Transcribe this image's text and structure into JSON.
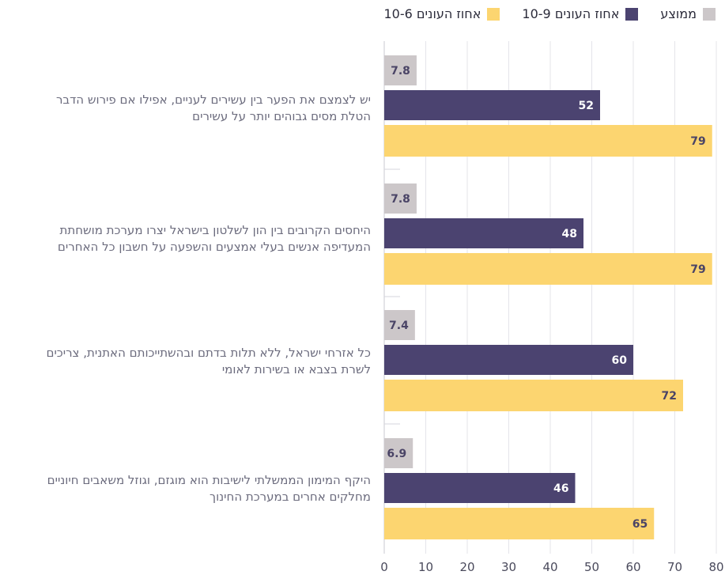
{
  "chart_data": {
    "type": "bar",
    "orientation": "horizontal",
    "categories": [
      "יש לצמצם את הפער בין עשירים לעניים, אפילו אם פירוש הדבר הטלת מסים גבוהים יותר על עשירים",
      "היחסים הקרובים בין הון לשלטון בישראל יצרו מערכת מושחתת המעדיפה אנשים בעלי אמצעים והשפעה על חשבון כל האחרים",
      "כל אזרחי ישראל, ללא תלות בדתם ובהשתייכותם האתנית, צריכים לשרת בצבא או בשירות לאומי",
      "היקף המימון הממשלתי לישיבות הוא מוגזם, וגוזל משאבים חיוניים מחלקים אחרים במערכת החינוך"
    ],
    "series": [
      {
        "name": "ממוצע",
        "color": "#ccc7c9",
        "text_color": "#4a4466",
        "values": [
          7.8,
          7.8,
          7.4,
          6.9
        ],
        "labels": [
          "7.8",
          "7.8",
          "7.4",
          "6.9"
        ]
      },
      {
        "name": "אחוז העונים 10-9",
        "color": "#4b4370",
        "text_color": "#ffffff",
        "values": [
          52,
          48,
          60,
          46
        ],
        "labels": [
          "52",
          "48",
          "60",
          "46"
        ]
      },
      {
        "name": "אחוז העונים 10-6",
        "color": "#fcd570",
        "text_color": "#4a4466",
        "values": [
          79,
          79,
          72,
          65
        ],
        "labels": [
          "79",
          "79",
          "72",
          "65"
        ]
      }
    ],
    "xlim": [
      0,
      80
    ],
    "xticks": [
      "0",
      "10",
      "20",
      "30",
      "40",
      "50",
      "60",
      "70",
      "80"
    ],
    "grid": true,
    "legend_position": "top-right",
    "title": "",
    "xlabel": "",
    "ylabel": ""
  }
}
